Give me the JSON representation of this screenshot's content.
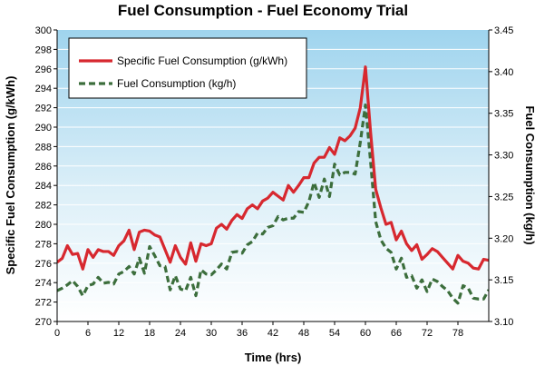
{
  "chart_data": {
    "type": "line",
    "title": "Fuel Consumption - Fuel Economy Trial",
    "xlabel": "Time (hrs)",
    "ylabel_left": "Specific Fuel Consumption (g/kWh)",
    "ylabel_right": "Fuel Consumption (kg/h)",
    "xlim": [
      0,
      84
    ],
    "ylim_left": [
      270,
      300
    ],
    "ylim_right": [
      3.1,
      3.45
    ],
    "x_ticks": [
      0,
      6,
      12,
      18,
      24,
      30,
      36,
      42,
      48,
      54,
      60,
      66,
      72,
      78
    ],
    "y_ticks_left": [
      270,
      272,
      274,
      276,
      278,
      280,
      282,
      284,
      286,
      288,
      290,
      292,
      294,
      296,
      298,
      300
    ],
    "y_ticks_right": [
      "3.10",
      "3.15",
      "3.20",
      "3.25",
      "3.30",
      "3.35",
      "3.40",
      "3.45"
    ],
    "grid": "horizontal",
    "background": "gradient light blue top to white bottom",
    "legend_position": "top-left",
    "series": [
      {
        "name": "Specific Fuel Consumption (g/kWh)",
        "axis": "left",
        "color": "#d7282f",
        "style": "solid",
        "x": [
          0,
          1,
          2,
          3,
          4,
          5,
          6,
          7,
          8,
          9,
          10,
          11,
          12,
          13,
          14,
          15,
          16,
          17,
          18,
          19,
          20,
          21,
          22,
          23,
          24,
          25,
          26,
          27,
          28,
          29,
          30,
          31,
          32,
          33,
          34,
          35,
          36,
          37,
          38,
          39,
          40,
          41,
          42,
          43,
          44,
          45,
          46,
          47,
          48,
          49,
          50,
          51,
          52,
          53,
          54,
          55,
          56,
          57,
          58,
          59,
          60,
          61,
          62,
          63,
          64,
          65,
          66,
          67,
          68,
          69,
          70,
          71,
          72,
          73,
          74,
          75,
          76,
          77,
          78,
          79,
          80,
          81,
          82,
          83,
          84
        ],
        "values": [
          276.1,
          276.5,
          277.8,
          276.9,
          277.0,
          275.4,
          277.4,
          276.6,
          277.4,
          277.2,
          277.2,
          276.8,
          277.8,
          278.3,
          279.4,
          277.4,
          279.2,
          279.4,
          279.3,
          278.9,
          278.7,
          277.4,
          276.1,
          277.8,
          276.6,
          275.9,
          278.1,
          276.2,
          278.0,
          277.8,
          278.0,
          279.6,
          280.0,
          279.5,
          280.4,
          281.0,
          280.6,
          281.6,
          282.0,
          281.6,
          282.4,
          282.7,
          283.3,
          282.9,
          282.5,
          284.0,
          283.3,
          284.0,
          284.8,
          284.8,
          286.3,
          286.9,
          286.9,
          287.9,
          287.2,
          288.9,
          288.6,
          289.1,
          289.9,
          292.0,
          296.2,
          289.5,
          283.6,
          281.7,
          280.0,
          280.2,
          278.4,
          279.3,
          278.0,
          277.3,
          277.9,
          276.4,
          276.9,
          277.5,
          277.2,
          276.6,
          276.0,
          275.4,
          276.8,
          276.2,
          276.0,
          275.5,
          275.4,
          276.4,
          276.3
        ]
      },
      {
        "name": "Fuel Consumption (kg/h)",
        "axis": "right",
        "color": "#3c6e3c",
        "style": "dashed",
        "x": [
          0,
          1,
          2,
          3,
          4,
          5,
          6,
          7,
          8,
          9,
          10,
          11,
          12,
          13,
          14,
          15,
          16,
          17,
          18,
          19,
          20,
          21,
          22,
          23,
          24,
          25,
          26,
          27,
          28,
          29,
          30,
          31,
          32,
          33,
          34,
          35,
          36,
          37,
          38,
          39,
          40,
          41,
          42,
          43,
          44,
          45,
          46,
          47,
          48,
          49,
          50,
          51,
          52,
          53,
          54,
          55,
          56,
          57,
          58,
          59,
          60,
          61,
          62,
          63,
          64,
          65,
          66,
          67,
          68,
          69,
          70,
          71,
          72,
          73,
          74,
          75,
          76,
          77,
          78,
          79,
          80,
          81,
          82,
          83,
          84
        ],
        "values": [
          3.137,
          3.14,
          3.144,
          3.149,
          3.142,
          3.131,
          3.143,
          3.145,
          3.153,
          3.146,
          3.147,
          3.145,
          3.157,
          3.16,
          3.166,
          3.157,
          3.176,
          3.158,
          3.19,
          3.179,
          3.167,
          3.166,
          3.138,
          3.155,
          3.139,
          3.137,
          3.153,
          3.131,
          3.162,
          3.157,
          3.156,
          3.162,
          3.169,
          3.163,
          3.183,
          3.184,
          3.182,
          3.192,
          3.196,
          3.206,
          3.205,
          3.213,
          3.215,
          3.226,
          3.222,
          3.224,
          3.224,
          3.232,
          3.231,
          3.244,
          3.267,
          3.249,
          3.271,
          3.25,
          3.289,
          3.276,
          3.279,
          3.279,
          3.277,
          3.315,
          3.36,
          3.292,
          3.22,
          3.198,
          3.188,
          3.183,
          3.163,
          3.176,
          3.153,
          3.155,
          3.14,
          3.15,
          3.136,
          3.151,
          3.148,
          3.142,
          3.137,
          3.128,
          3.122,
          3.143,
          3.14,
          3.128,
          3.127,
          3.127,
          3.138
        ]
      }
    ]
  }
}
